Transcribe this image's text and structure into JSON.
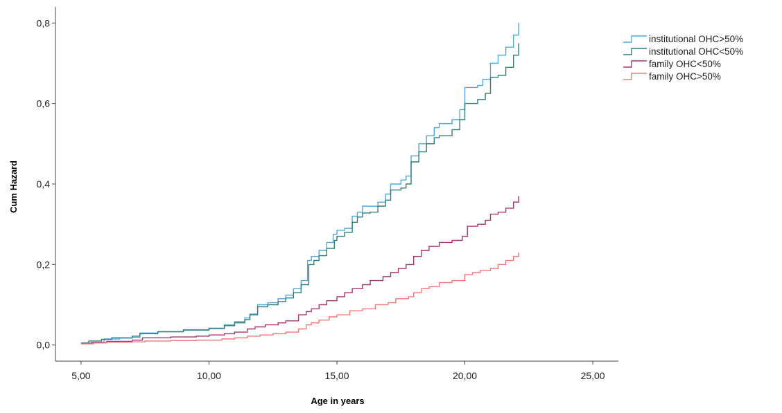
{
  "chart_data": {
    "type": "line",
    "title": "",
    "xlabel": "Age in years",
    "ylabel": "Cum Hazard",
    "xlim": [
      4,
      26
    ],
    "ylim": [
      -0.04,
      0.84
    ],
    "x_ticks": [
      {
        "value": 5,
        "label": "5,00"
      },
      {
        "value": 10,
        "label": "10,00"
      },
      {
        "value": 15,
        "label": "15,00"
      },
      {
        "value": 20,
        "label": "20,00"
      },
      {
        "value": 25,
        "label": "25,00"
      }
    ],
    "y_ticks": [
      {
        "value": 0.0,
        "label": "0,0"
      },
      {
        "value": 0.2,
        "label": "0,2"
      },
      {
        "value": 0.4,
        "label": "0,4"
      },
      {
        "value": 0.6,
        "label": "0,6"
      },
      {
        "value": 0.8,
        "label": "0,8"
      }
    ],
    "grid": false,
    "legend_position": "top-right",
    "step": true,
    "series": [
      {
        "name": "institutional OHC>50%",
        "color": "#4fa8e0",
        "points": [
          [
            5.0,
            0.003
          ],
          [
            5.1,
            0.005
          ],
          [
            5.5,
            0.007
          ],
          [
            5.9,
            0.015
          ],
          [
            6.5,
            0.017
          ],
          [
            7.0,
            0.019
          ],
          [
            7.3,
            0.03
          ],
          [
            8.0,
            0.033
          ],
          [
            9.0,
            0.038
          ],
          [
            10.0,
            0.042
          ],
          [
            10.6,
            0.05
          ],
          [
            11.0,
            0.058
          ],
          [
            11.4,
            0.067
          ],
          [
            11.6,
            0.077
          ],
          [
            11.9,
            0.1
          ],
          [
            12.3,
            0.105
          ],
          [
            12.7,
            0.115
          ],
          [
            13.0,
            0.124
          ],
          [
            13.3,
            0.14
          ],
          [
            13.6,
            0.16
          ],
          [
            13.85,
            0.21
          ],
          [
            14.0,
            0.22
          ],
          [
            14.3,
            0.235
          ],
          [
            14.6,
            0.255
          ],
          [
            14.85,
            0.275
          ],
          [
            15.0,
            0.285
          ],
          [
            15.3,
            0.29
          ],
          [
            15.6,
            0.32
          ],
          [
            15.8,
            0.33
          ],
          [
            16.0,
            0.345
          ],
          [
            16.3,
            0.345
          ],
          [
            16.6,
            0.355
          ],
          [
            16.9,
            0.375
          ],
          [
            17.1,
            0.4
          ],
          [
            17.5,
            0.41
          ],
          [
            17.7,
            0.42
          ],
          [
            17.9,
            0.47
          ],
          [
            18.2,
            0.5
          ],
          [
            18.5,
            0.52
          ],
          [
            18.8,
            0.54
          ],
          [
            19.0,
            0.55
          ],
          [
            19.5,
            0.56
          ],
          [
            19.8,
            0.585
          ],
          [
            20.0,
            0.64
          ],
          [
            20.5,
            0.645
          ],
          [
            20.7,
            0.66
          ],
          [
            21.0,
            0.7
          ],
          [
            21.3,
            0.72
          ],
          [
            21.6,
            0.74
          ],
          [
            21.9,
            0.77
          ],
          [
            22.1,
            0.8
          ]
        ]
      },
      {
        "name": "institutional OHC<50%",
        "color": "#2e7f74",
        "points": [
          [
            5.0,
            0.005
          ],
          [
            5.3,
            0.01
          ],
          [
            5.8,
            0.014
          ],
          [
            6.2,
            0.018
          ],
          [
            7.0,
            0.022
          ],
          [
            7.3,
            0.028
          ],
          [
            8.0,
            0.033
          ],
          [
            9.0,
            0.037
          ],
          [
            10.0,
            0.041
          ],
          [
            10.6,
            0.048
          ],
          [
            11.0,
            0.055
          ],
          [
            11.4,
            0.063
          ],
          [
            11.6,
            0.075
          ],
          [
            11.9,
            0.095
          ],
          [
            12.3,
            0.1
          ],
          [
            12.7,
            0.108
          ],
          [
            13.0,
            0.117
          ],
          [
            13.3,
            0.13
          ],
          [
            13.6,
            0.15
          ],
          [
            13.9,
            0.2
          ],
          [
            14.1,
            0.21
          ],
          [
            14.3,
            0.222
          ],
          [
            14.6,
            0.24
          ],
          [
            14.9,
            0.26
          ],
          [
            15.0,
            0.27
          ],
          [
            15.3,
            0.28
          ],
          [
            15.6,
            0.305
          ],
          [
            15.8,
            0.318
          ],
          [
            16.0,
            0.328
          ],
          [
            16.3,
            0.33
          ],
          [
            16.6,
            0.345
          ],
          [
            16.9,
            0.36
          ],
          [
            17.1,
            0.385
          ],
          [
            17.5,
            0.39
          ],
          [
            17.7,
            0.4
          ],
          [
            17.9,
            0.455
          ],
          [
            18.2,
            0.48
          ],
          [
            18.5,
            0.5
          ],
          [
            18.8,
            0.515
          ],
          [
            19.0,
            0.52
          ],
          [
            19.5,
            0.535
          ],
          [
            19.8,
            0.56
          ],
          [
            20.0,
            0.6
          ],
          [
            20.5,
            0.61
          ],
          [
            20.8,
            0.625
          ],
          [
            21.0,
            0.665
          ],
          [
            21.3,
            0.67
          ],
          [
            21.6,
            0.69
          ],
          [
            21.9,
            0.72
          ],
          [
            22.1,
            0.75
          ]
        ]
      },
      {
        "name": "family OHC<50%",
        "color": "#a8346b",
        "points": [
          [
            5.0,
            0.004
          ],
          [
            5.4,
            0.006
          ],
          [
            6.0,
            0.009
          ],
          [
            7.0,
            0.012
          ],
          [
            7.4,
            0.018
          ],
          [
            8.5,
            0.02
          ],
          [
            9.5,
            0.022
          ],
          [
            10.0,
            0.025
          ],
          [
            10.6,
            0.028
          ],
          [
            11.0,
            0.032
          ],
          [
            11.5,
            0.04
          ],
          [
            11.8,
            0.045
          ],
          [
            12.2,
            0.05
          ],
          [
            12.7,
            0.055
          ],
          [
            13.0,
            0.06
          ],
          [
            13.5,
            0.075
          ],
          [
            13.8,
            0.083
          ],
          [
            14.0,
            0.09
          ],
          [
            14.3,
            0.1
          ],
          [
            14.6,
            0.11
          ],
          [
            15.0,
            0.12
          ],
          [
            15.3,
            0.13
          ],
          [
            15.6,
            0.14
          ],
          [
            16.0,
            0.15
          ],
          [
            16.3,
            0.16
          ],
          [
            16.8,
            0.17
          ],
          [
            17.1,
            0.18
          ],
          [
            17.4,
            0.19
          ],
          [
            17.7,
            0.2
          ],
          [
            18.0,
            0.22
          ],
          [
            18.3,
            0.235
          ],
          [
            18.6,
            0.245
          ],
          [
            19.0,
            0.255
          ],
          [
            19.5,
            0.26
          ],
          [
            19.9,
            0.27
          ],
          [
            20.1,
            0.295
          ],
          [
            20.5,
            0.3
          ],
          [
            20.8,
            0.31
          ],
          [
            21.0,
            0.325
          ],
          [
            21.3,
            0.33
          ],
          [
            21.6,
            0.34
          ],
          [
            21.9,
            0.355
          ],
          [
            22.1,
            0.37
          ]
        ]
      },
      {
        "name": "family OHC>50%",
        "color": "#f07878",
        "points": [
          [
            5.0,
            0.003
          ],
          [
            5.5,
            0.005
          ],
          [
            6.0,
            0.007
          ],
          [
            7.0,
            0.008
          ],
          [
            7.5,
            0.01
          ],
          [
            8.5,
            0.011
          ],
          [
            9.5,
            0.012
          ],
          [
            10.5,
            0.015
          ],
          [
            11.0,
            0.018
          ],
          [
            11.5,
            0.022
          ],
          [
            12.0,
            0.025
          ],
          [
            12.5,
            0.028
          ],
          [
            13.0,
            0.032
          ],
          [
            13.5,
            0.04
          ],
          [
            13.8,
            0.05
          ],
          [
            14.0,
            0.055
          ],
          [
            14.3,
            0.062
          ],
          [
            14.7,
            0.07
          ],
          [
            15.0,
            0.075
          ],
          [
            15.5,
            0.085
          ],
          [
            16.0,
            0.09
          ],
          [
            16.5,
            0.1
          ],
          [
            17.0,
            0.105
          ],
          [
            17.3,
            0.115
          ],
          [
            17.8,
            0.12
          ],
          [
            18.0,
            0.13
          ],
          [
            18.3,
            0.14
          ],
          [
            18.6,
            0.145
          ],
          [
            19.0,
            0.155
          ],
          [
            19.5,
            0.16
          ],
          [
            20.0,
            0.175
          ],
          [
            20.3,
            0.18
          ],
          [
            20.6,
            0.185
          ],
          [
            21.0,
            0.19
          ],
          [
            21.3,
            0.2
          ],
          [
            21.6,
            0.21
          ],
          [
            21.9,
            0.22
          ],
          [
            22.1,
            0.23
          ]
        ]
      }
    ]
  }
}
